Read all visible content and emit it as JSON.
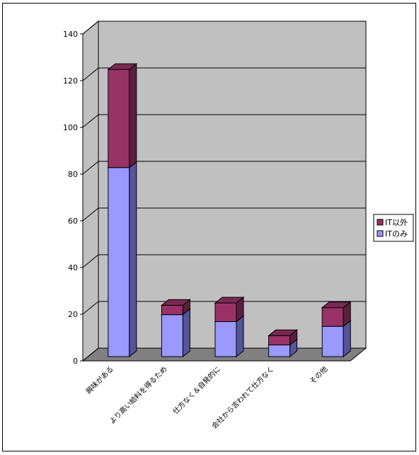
{
  "chart_data": {
    "type": "bar",
    "stacked": true,
    "three_d": true,
    "categories": [
      "興味がある",
      "より高い給料を得るため",
      "仕方なく＆自発的に",
      "会社から言われて仕方なく",
      "その他"
    ],
    "series": [
      {
        "name": "ITのみ",
        "values": [
          81,
          18,
          15,
          5,
          13
        ],
        "color": "#9999ff",
        "side_color": "#555599",
        "top_color": "#bbbbff"
      },
      {
        "name": "IT以外",
        "values": [
          42,
          4,
          8,
          4,
          8
        ],
        "color": "#993366",
        "side_color": "#5c1f3d",
        "top_color": "#7a2a52"
      }
    ],
    "yticks": [
      "0",
      "20",
      "40",
      "60",
      "80",
      "100",
      "120",
      "140"
    ],
    "ylim": [
      0,
      140
    ],
    "grid": true,
    "legend_position": "right",
    "legend_order": [
      "IT以外",
      "ITのみ"
    ],
    "wall_color": "#c0c0c0",
    "floor_color": "#808080"
  }
}
